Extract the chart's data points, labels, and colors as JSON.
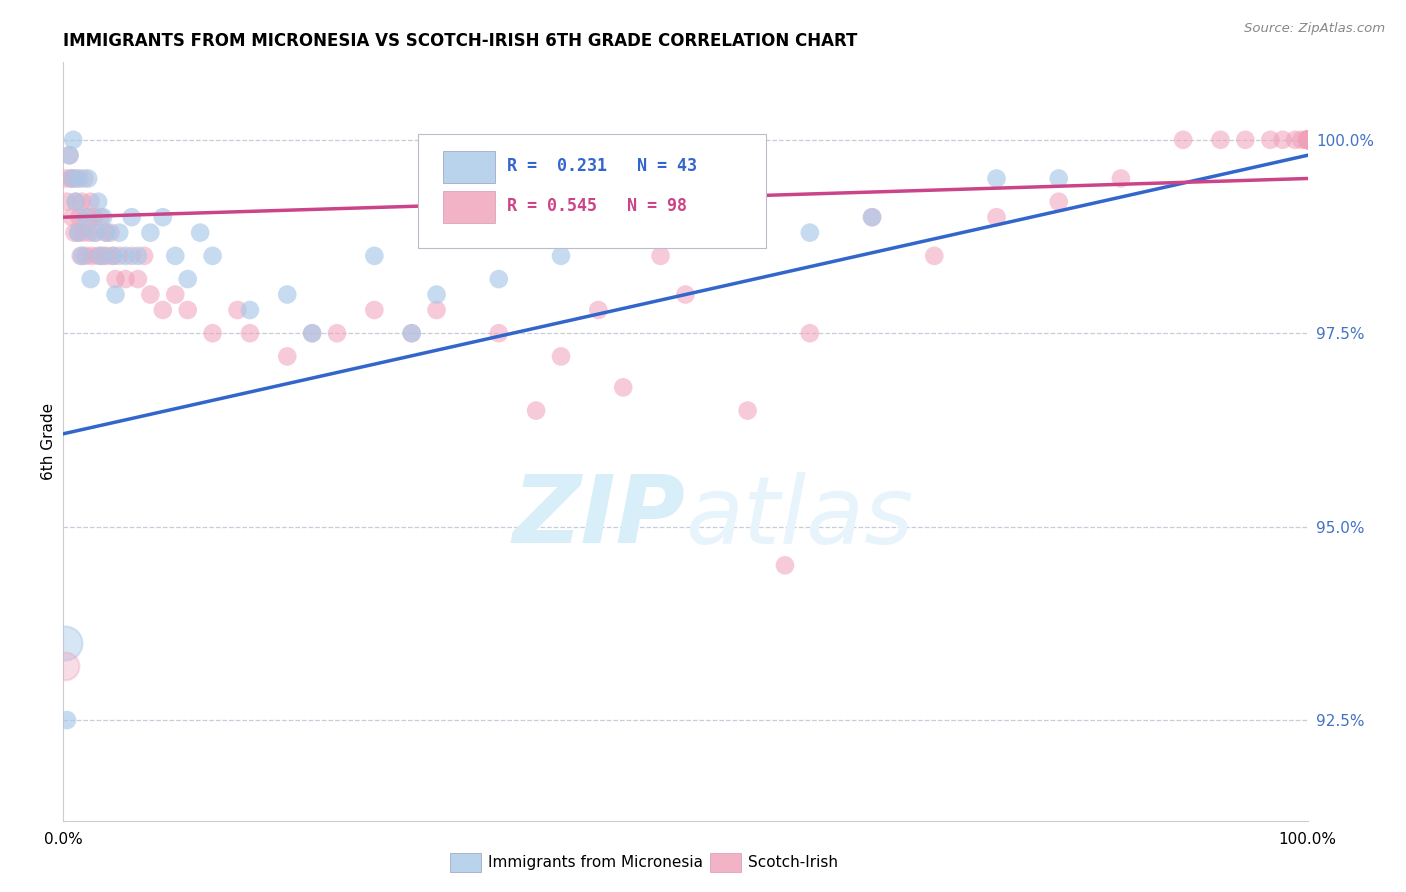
{
  "title": "IMMIGRANTS FROM MICRONESIA VS SCOTCH-IRISH 6TH GRADE CORRELATION CHART",
  "source_text": "Source: ZipAtlas.com",
  "ylabel": "6th Grade",
  "xmin": 0.0,
  "xmax": 100.0,
  "ymin": 91.2,
  "ymax": 101.0,
  "yticks": [
    92.5,
    95.0,
    97.5,
    100.0
  ],
  "ytick_labels": [
    "92.5%",
    "95.0%",
    "97.5%",
    "100.0%"
  ],
  "legend_blue_label": "Immigrants from Micronesia",
  "legend_pink_label": "Scotch-Irish",
  "R_blue": 0.231,
  "N_blue": 43,
  "R_pink": 0.545,
  "N_pink": 98,
  "blue_color": "#A8C8E8",
  "pink_color": "#F0A0B8",
  "trend_blue_color": "#3366CC",
  "trend_pink_color": "#CC4488",
  "watermark_color": "#D8EEF8",
  "background_color": "#FFFFFF",
  "blue_x": [
    0.3,
    0.5,
    0.7,
    0.8,
    1.0,
    1.2,
    1.3,
    1.5,
    1.8,
    2.0,
    2.2,
    2.5,
    2.8,
    3.0,
    3.2,
    3.5,
    4.0,
    4.2,
    4.5,
    5.0,
    5.5,
    6.0,
    7.0,
    8.0,
    9.0,
    10.0,
    11.0,
    12.0,
    15.0,
    18.0,
    20.0,
    25.0,
    28.0,
    30.0,
    35.0,
    40.0,
    45.0,
    50.0,
    55.0,
    60.0,
    65.0,
    75.0,
    80.0
  ],
  "blue_y": [
    92.5,
    99.8,
    99.5,
    100.0,
    99.2,
    98.8,
    99.5,
    98.5,
    99.0,
    99.5,
    98.2,
    98.8,
    99.2,
    98.5,
    99.0,
    98.8,
    98.5,
    98.0,
    98.8,
    98.5,
    99.0,
    98.5,
    98.8,
    99.0,
    98.5,
    98.2,
    98.8,
    98.5,
    97.8,
    98.0,
    97.5,
    98.5,
    97.5,
    98.0,
    98.2,
    98.5,
    98.8,
    99.0,
    99.2,
    98.8,
    99.0,
    99.5,
    99.5
  ],
  "blue_sizes": [
    350,
    200,
    180,
    200,
    180,
    200,
    180,
    180,
    200,
    180,
    180,
    200,
    180,
    200,
    180,
    200,
    180,
    180,
    200,
    180,
    200,
    180,
    200,
    180,
    200,
    180,
    200,
    180,
    180,
    180,
    180,
    180,
    180,
    180,
    180,
    180,
    180,
    180,
    180,
    180,
    180,
    180,
    180
  ],
  "pink_x": [
    0.2,
    0.3,
    0.5,
    0.6,
    0.7,
    0.8,
    0.9,
    1.0,
    1.1,
    1.2,
    1.3,
    1.4,
    1.5,
    1.6,
    1.7,
    1.8,
    2.0,
    2.1,
    2.2,
    2.3,
    2.5,
    2.6,
    2.8,
    3.0,
    3.2,
    3.4,
    3.5,
    3.8,
    4.0,
    4.2,
    4.5,
    5.0,
    5.5,
    6.0,
    6.5,
    7.0,
    8.0,
    9.0,
    10.0,
    12.0,
    14.0,
    15.0,
    18.0,
    20.0,
    22.0,
    25.0,
    28.0,
    30.0,
    35.0,
    38.0,
    40.0,
    43.0,
    45.0,
    48.0,
    50.0,
    55.0,
    58.0,
    60.0,
    65.0,
    70.0,
    75.0,
    80.0,
    85.0,
    90.0,
    93.0,
    95.0,
    97.0,
    98.0,
    99.0,
    99.5,
    100.0,
    100.0,
    100.0,
    100.0,
    100.0,
    100.0,
    100.0,
    100.0,
    100.0,
    100.0,
    100.0,
    100.0,
    100.0,
    100.0,
    100.0,
    100.0,
    100.0,
    100.0,
    100.0,
    100.0,
    100.0,
    100.0,
    100.0,
    100.0,
    100.0,
    100.0,
    100.0,
    100.0
  ],
  "pink_y": [
    99.5,
    99.2,
    99.8,
    99.5,
    99.0,
    99.5,
    98.8,
    99.2,
    99.5,
    98.8,
    99.0,
    98.5,
    99.2,
    98.8,
    99.5,
    98.5,
    99.0,
    98.8,
    99.2,
    98.5,
    99.0,
    98.8,
    98.5,
    99.0,
    98.5,
    98.8,
    98.5,
    98.8,
    98.5,
    98.2,
    98.5,
    98.2,
    98.5,
    98.2,
    98.5,
    98.0,
    97.8,
    98.0,
    97.8,
    97.5,
    97.8,
    97.5,
    97.2,
    97.5,
    97.5,
    97.8,
    97.5,
    97.8,
    97.5,
    96.5,
    97.2,
    97.8,
    96.8,
    98.5,
    98.0,
    96.5,
    94.5,
    97.5,
    99.0,
    98.5,
    99.0,
    99.2,
    99.5,
    100.0,
    100.0,
    100.0,
    100.0,
    100.0,
    100.0,
    100.0,
    100.0,
    100.0,
    100.0,
    100.0,
    100.0,
    100.0,
    100.0,
    100.0,
    100.0,
    100.0,
    100.0,
    100.0,
    100.0,
    100.0,
    100.0,
    100.0,
    100.0,
    100.0,
    100.0,
    100.0,
    100.0,
    100.0,
    100.0,
    100.0,
    100.0,
    100.0,
    100.0,
    100.0
  ],
  "pink_sizes": [
    180,
    180,
    180,
    180,
    180,
    180,
    180,
    200,
    180,
    180,
    200,
    180,
    180,
    180,
    180,
    200,
    180,
    180,
    200,
    180,
    200,
    180,
    200,
    180,
    180,
    180,
    200,
    180,
    200,
    180,
    200,
    180,
    200,
    180,
    200,
    180,
    180,
    180,
    180,
    180,
    180,
    180,
    180,
    180,
    180,
    180,
    180,
    180,
    180,
    180,
    180,
    180,
    180,
    180,
    180,
    180,
    180,
    180,
    180,
    180,
    180,
    180,
    180,
    180,
    180,
    180,
    180,
    180,
    180,
    180,
    180,
    180,
    180,
    180,
    180,
    180,
    180,
    180,
    180,
    180,
    180,
    180,
    180,
    180,
    180,
    180,
    180,
    180,
    180,
    180,
    180,
    180,
    180,
    180,
    180,
    180,
    180,
    180
  ]
}
